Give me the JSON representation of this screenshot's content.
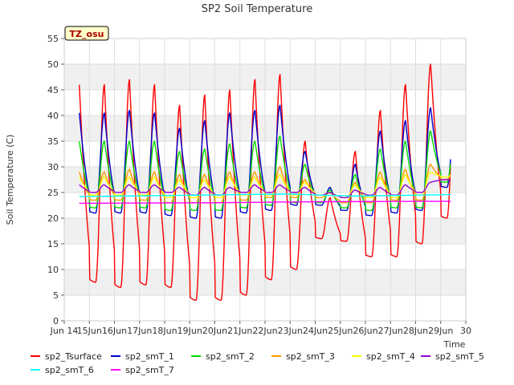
{
  "chart_data": {
    "type": "line",
    "title": "SP2 Soil Temperature",
    "xlabel": "Time",
    "ylabel": "Soil Temperature (C)",
    "ylim": [
      0,
      55
    ],
    "xlim": [
      14,
      30
    ],
    "yticks": [
      0,
      5,
      10,
      15,
      20,
      25,
      30,
      35,
      40,
      45,
      50,
      55
    ],
    "xticks": [
      {
        "v": 14,
        "label": "Jun 14"
      },
      {
        "v": 15,
        "label": "15Jun"
      },
      {
        "v": 16,
        "label": "16Jun"
      },
      {
        "v": 17,
        "label": "17Jun"
      },
      {
        "v": 18,
        "label": "18Jun"
      },
      {
        "v": 19,
        "label": "19Jun"
      },
      {
        "v": 20,
        "label": "20Jun"
      },
      {
        "v": 21,
        "label": "21Jun"
      },
      {
        "v": 22,
        "label": "22Jun"
      },
      {
        "v": 23,
        "label": "23Jun"
      },
      {
        "v": 24,
        "label": "24Jun"
      },
      {
        "v": 25,
        "label": "25Jun"
      },
      {
        "v": 26,
        "label": "26Jun"
      },
      {
        "v": 27,
        "label": "27Jun"
      },
      {
        "v": 28,
        "label": "28Jun"
      },
      {
        "v": 29,
        "label": "29Jun"
      },
      {
        "v": 30,
        "label": "30"
      }
    ],
    "annotation": "TZ_osu",
    "x_start": 14.6,
    "x_end": 29.4,
    "series": [
      {
        "name": "sp2_Tsurface",
        "color": "#ff0000",
        "max": [
          46,
          47,
          46,
          42,
          44,
          45,
          47,
          48,
          35,
          24,
          33,
          41,
          46,
          50
        ],
        "min": [
          7.5,
          6.5,
          7,
          6.5,
          4,
          4,
          5,
          8,
          10,
          16,
          15.5,
          12.5,
          12.5,
          15,
          20
        ]
      },
      {
        "name": "sp2_smT_1",
        "color": "#0000cc",
        "max": [
          40.5,
          41,
          40.5,
          37.5,
          39,
          40.5,
          41,
          42,
          33,
          26,
          30.5,
          37,
          39,
          41.5
        ],
        "min": [
          21,
          21,
          21,
          20.5,
          20,
          20,
          21,
          21.5,
          22.5,
          22.5,
          21.5,
          20.5,
          21,
          21.5,
          26
        ]
      },
      {
        "name": "sp2_smT_2",
        "color": "#00dd00",
        "max": [
          35,
          35,
          35,
          33,
          33.5,
          34.5,
          35,
          36,
          30.5,
          25.5,
          28.5,
          33.5,
          35,
          37
        ],
        "min": [
          22,
          22,
          22,
          21.5,
          21.5,
          21.5,
          22,
          22.5,
          23,
          23,
          22,
          21.5,
          22,
          22,
          27
        ]
      },
      {
        "name": "sp2_smT_3",
        "color": "#ff9900",
        "max": [
          29,
          29.5,
          29,
          28.5,
          28.5,
          29,
          29,
          30,
          27.5,
          25,
          27,
          29,
          29.5,
          30.5
        ],
        "min": [
          23.5,
          23.5,
          23.5,
          23,
          23,
          23,
          23.5,
          24,
          24,
          24,
          23,
          23,
          23.5,
          23.5,
          27.5
        ]
      },
      {
        "name": "sp2_smT_4",
        "color": "#ffff00",
        "max": [
          28,
          28,
          28,
          27.5,
          27.5,
          28,
          28,
          28.5,
          27,
          25,
          26.5,
          28,
          28.5,
          29
        ],
        "min": [
          24.5,
          24.5,
          24.5,
          24,
          24,
          24,
          24.5,
          24.5,
          24.5,
          24.5,
          24,
          24,
          24,
          24.5,
          28
        ]
      },
      {
        "name": "sp2_smT_5",
        "color": "#9900cc",
        "max": [
          26.5,
          26.5,
          26.5,
          26,
          26,
          26,
          26.5,
          26.5,
          26,
          25,
          25.5,
          26,
          26.5,
          27
        ],
        "min": [
          25,
          25,
          25,
          25,
          24.5,
          24.5,
          25,
          25,
          25,
          24.5,
          24,
          24.5,
          24.5,
          25,
          27.5
        ]
      },
      {
        "name": "sp2_smT_6",
        "color": "#00ffff",
        "flat": [
          [
            14.6,
            24.2
          ],
          [
            21,
            24.6
          ],
          [
            23,
            24.7
          ],
          [
            25.5,
            24.3
          ],
          [
            29.4,
            24.6
          ]
        ]
      },
      {
        "name": "sp2_smT_7",
        "color": "#ff00ff",
        "flat": [
          [
            14.6,
            22.9
          ],
          [
            20,
            23.0
          ],
          [
            24,
            23.2
          ],
          [
            29.4,
            23.3
          ]
        ]
      }
    ]
  }
}
